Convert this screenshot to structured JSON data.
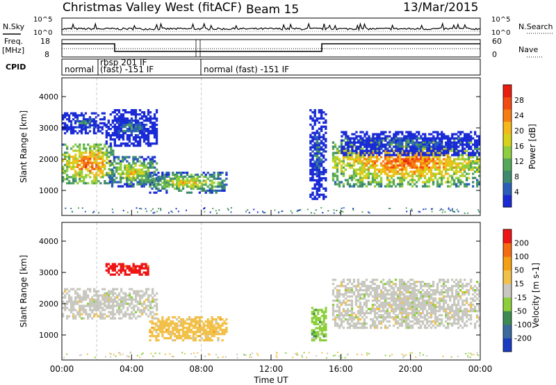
{
  "header": {
    "title": "Christmas Valley West (fitACF)",
    "beam": "Beam 15",
    "date": "13/Mar/2015"
  },
  "sky_panel": {
    "label": "N.Sky",
    "right_label": "N.Search",
    "ytick_top": "10^5",
    "ytick_bottom": "10^0",
    "rtick_top": "10^5",
    "rtick_bottom": "10^0"
  },
  "freq_panel": {
    "label_line1": "Freq.",
    "label_line2": "[MHz]",
    "right_label": "Nave",
    "yticks": [
      "18",
      "8"
    ],
    "rticks": [
      "60",
      "0"
    ]
  },
  "cpid_panel": {
    "label": "CPID",
    "segments": [
      "normal",
      "rbsp 201 IF",
      "(fast) -151 IF",
      "normal (fast) -151 IF"
    ]
  },
  "chart_data": [
    {
      "type": "heatmap",
      "name": "power",
      "ylabel": "Slant Range [km]",
      "ylim": [
        200,
        4600
      ],
      "yticks": [
        "1000",
        "2000",
        "3000",
        "4000"
      ],
      "xlim": [
        0,
        24
      ],
      "colorbar": {
        "label": "Power [dB]",
        "ticks": [
          "28",
          "24",
          "20",
          "16",
          "12",
          "8",
          "4"
        ],
        "colors": [
          "#1a2bd6",
          "#2a5fb8",
          "#3e8a6e",
          "#55a85a",
          "#8fce3e",
          "#d6d21c",
          "#f5b81a",
          "#f77d13",
          "#f24a10",
          "#e81d0f"
        ]
      },
      "regions": [
        {
          "t0": 0.0,
          "t1": 3.0,
          "r0": 1200,
          "r1": 2500,
          "level": "high"
        },
        {
          "t0": 0.0,
          "t1": 2.5,
          "r0": 2800,
          "r1": 3500,
          "level": "low"
        },
        {
          "t0": 2.7,
          "t1": 5.5,
          "r0": 1100,
          "r1": 2100,
          "level": "mid"
        },
        {
          "t0": 2.5,
          "t1": 5.5,
          "r0": 2400,
          "r1": 3600,
          "level": "low"
        },
        {
          "t0": 5.0,
          "t1": 9.5,
          "r0": 900,
          "r1": 1600,
          "level": "mid"
        },
        {
          "t0": 14.2,
          "t1": 15.2,
          "r0": 700,
          "r1": 3600,
          "level": "low"
        },
        {
          "t0": 15.5,
          "t1": 24.0,
          "r0": 1100,
          "r1": 2700,
          "level": "high"
        },
        {
          "t0": 16.0,
          "t1": 24.0,
          "r0": 2100,
          "r1": 2900,
          "level": "low"
        }
      ]
    },
    {
      "type": "heatmap",
      "name": "velocity",
      "ylabel": "Slant Range [km]",
      "ylim": [
        200,
        4600
      ],
      "yticks": [
        "1000",
        "2000",
        "3000",
        "4000"
      ],
      "xlim": [
        0,
        24
      ],
      "xticks": [
        "00:00",
        "04:00",
        "08:00",
        "12:00",
        "16:00",
        "20:00",
        "00:00"
      ],
      "xlabel": "Time UT",
      "colorbar": {
        "label": "Velocity [m s-1]",
        "ticks": [
          "200",
          "100",
          "50",
          "15",
          "-15",
          "-50",
          "-100",
          "-200"
        ],
        "colors": [
          "#1a3bc4",
          "#3a6a9e",
          "#3d8a52",
          "#8ccf3a",
          "#c8c8c0",
          "#f2c14a",
          "#f5a012",
          "#f56b12",
          "#ee1414"
        ]
      },
      "regions": [
        {
          "t0": 0.0,
          "t1": 5.5,
          "r0": 1500,
          "r1": 2500,
          "color": "gray"
        },
        {
          "t0": 5.0,
          "t1": 9.5,
          "r0": 800,
          "r1": 1600,
          "color": "orange"
        },
        {
          "t0": 2.5,
          "t1": 5.0,
          "r0": 2900,
          "r1": 3300,
          "color": "red"
        },
        {
          "t0": 15.5,
          "t1": 24.0,
          "r0": 1200,
          "r1": 2800,
          "color": "gray"
        },
        {
          "t0": 14.3,
          "t1": 15.2,
          "r0": 800,
          "r1": 1900,
          "color": "green"
        }
      ]
    }
  ]
}
